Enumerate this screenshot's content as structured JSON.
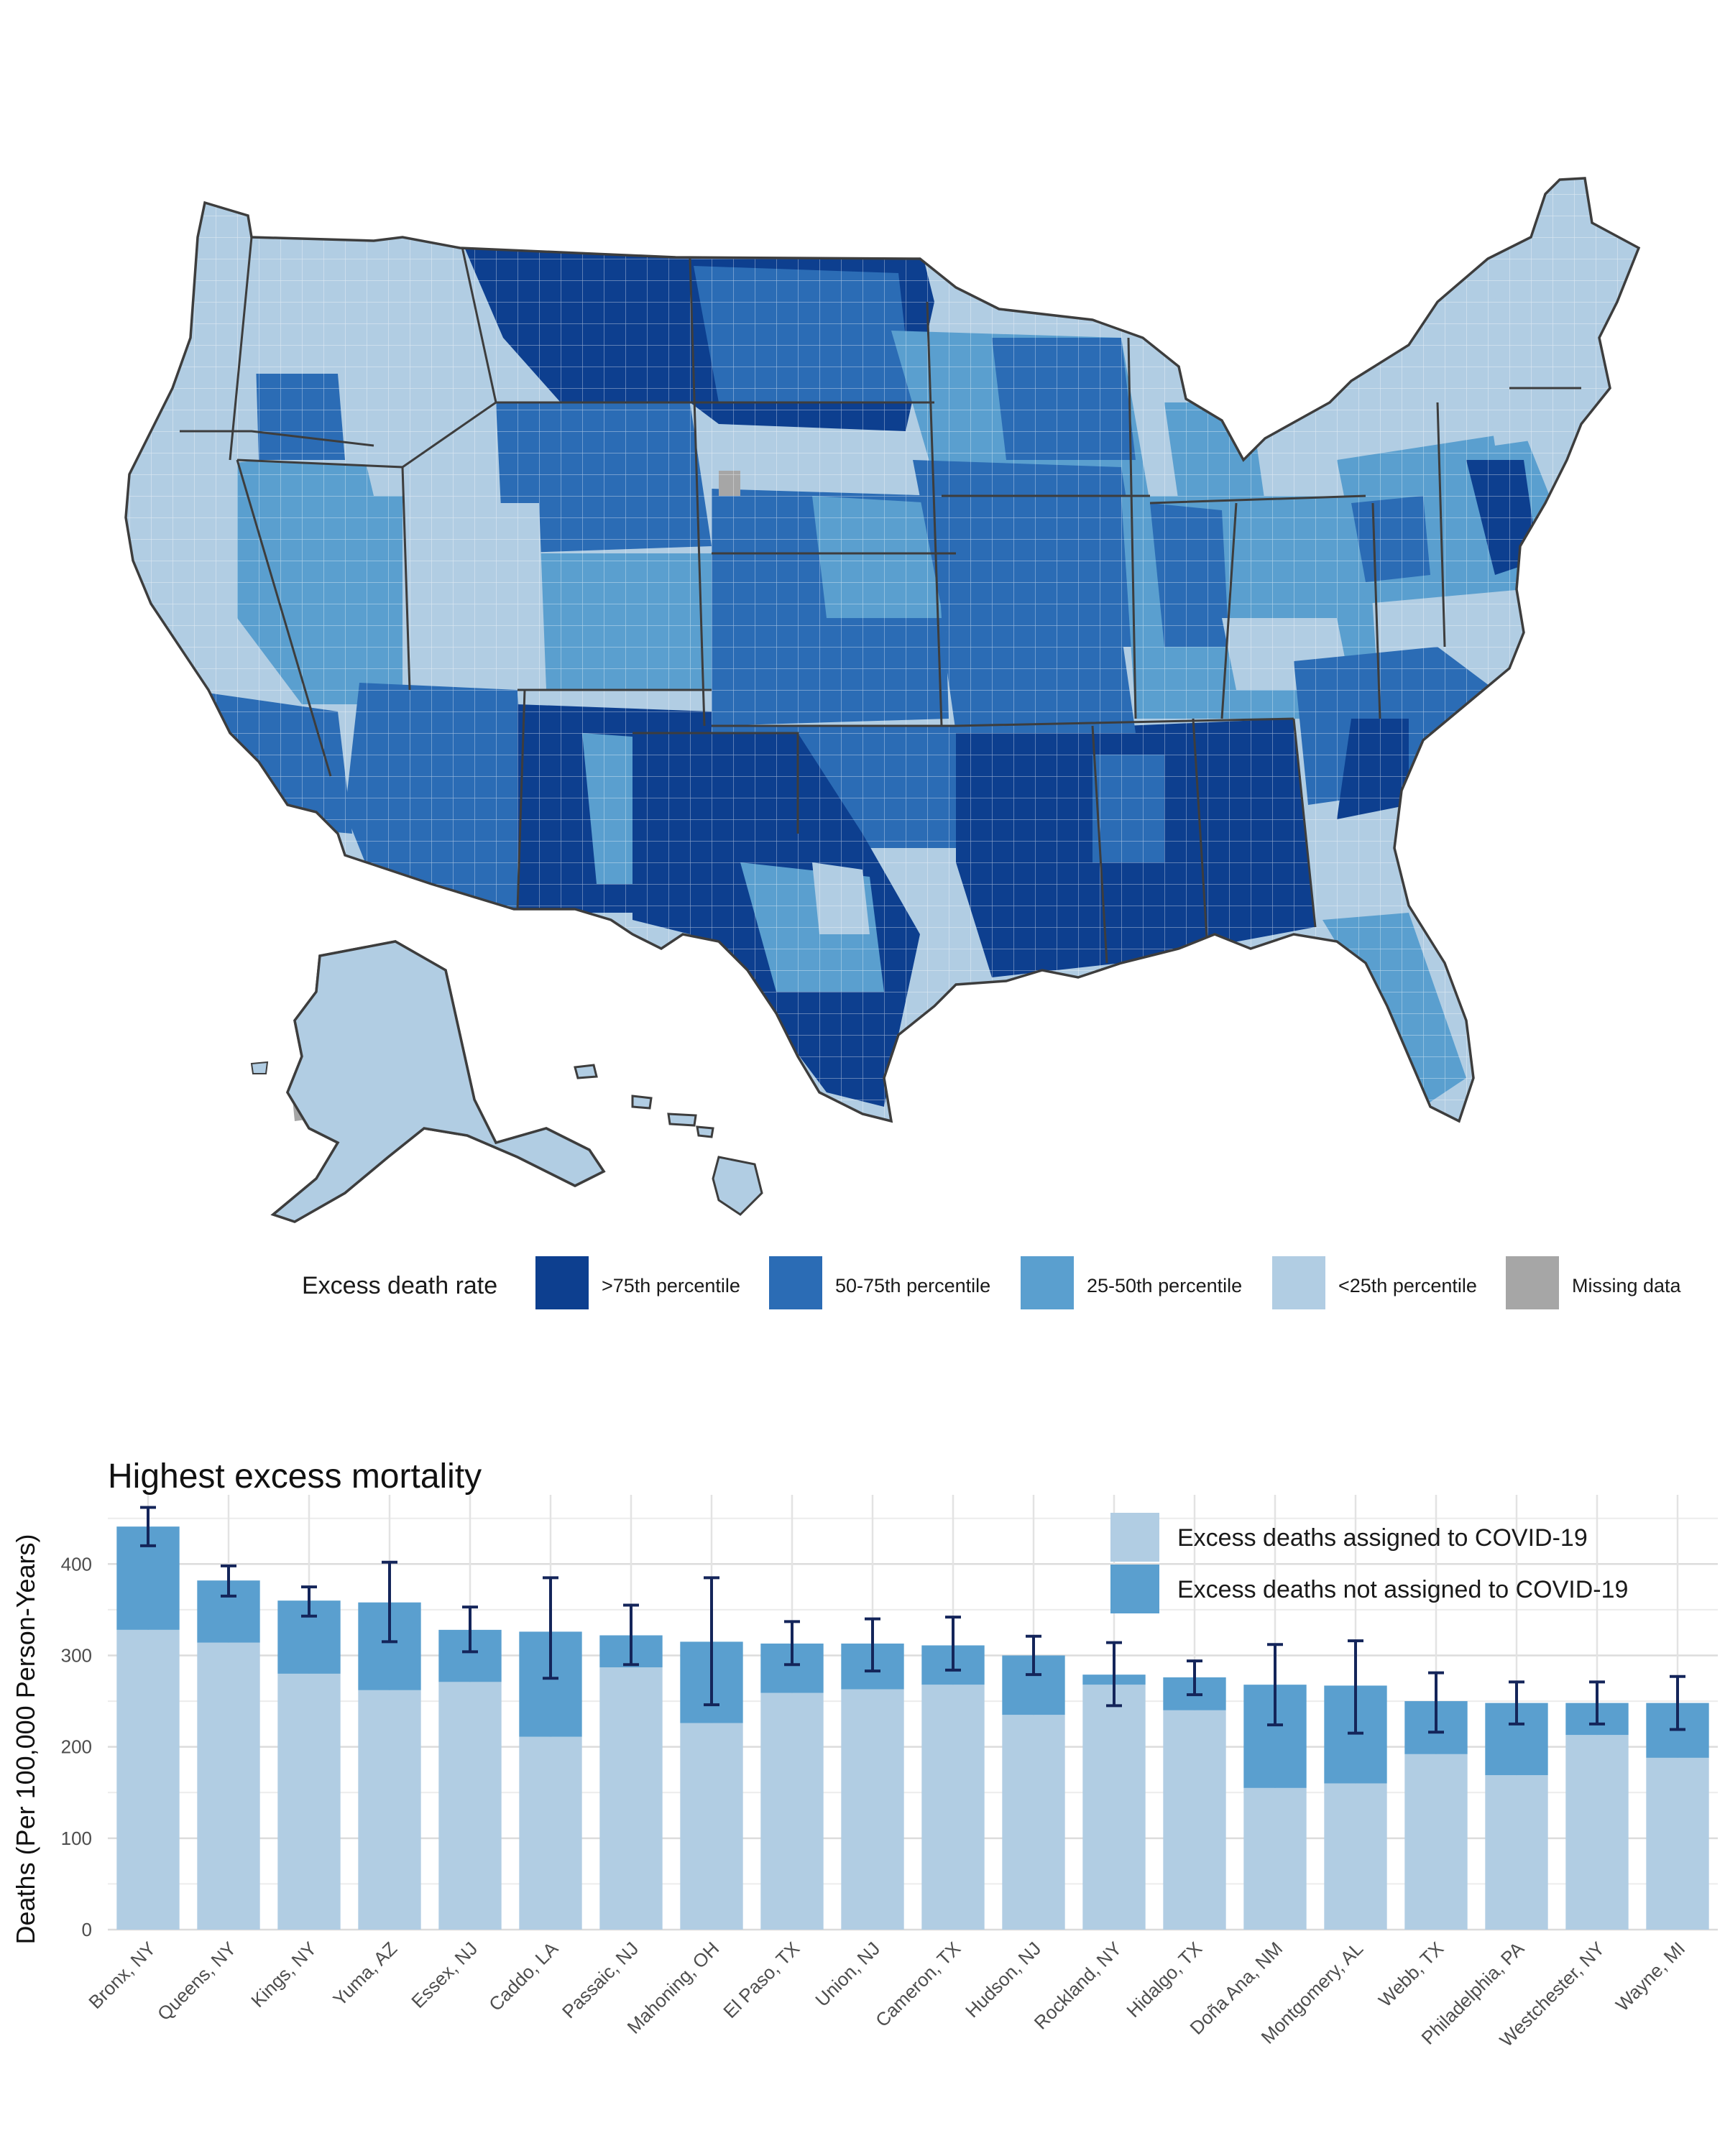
{
  "map": {
    "legend_title": "Excess death rate",
    "legend_items": [
      {
        "label": ">75th percentile",
        "color": "#0d3f8f"
      },
      {
        "label": "50-75th percentile",
        "color": "#2b6cb5"
      },
      {
        "label": "25-50th percentile",
        "color": "#5a9fcf"
      },
      {
        "label": "<25th percentile",
        "color": "#b1cde3"
      },
      {
        "label": "Missing data",
        "color": "#a6a6a6"
      }
    ]
  },
  "chart_data": {
    "type": "bar",
    "stacked": true,
    "title": "Highest excess mortality",
    "xlabel": "",
    "ylabel": "Deaths (Per 100,000 Person-Years)",
    "ylim": [
      0,
      460
    ],
    "yticks": [
      0,
      100,
      200,
      300,
      400
    ],
    "categories": [
      "Bronx, NY",
      "Queens, NY",
      "Kings, NY",
      "Yuma, AZ",
      "Essex, NJ",
      "Caddo, LA",
      "Passaic, NJ",
      "Mahoning, OH",
      "El Paso, TX",
      "Union, NJ",
      "Cameron, TX",
      "Hudson, NJ",
      "Rockland, NY",
      "Hidalgo, TX",
      "Doña Ana, NM",
      "Montgomery, AL",
      "Webb, TX",
      "Philadelphia, PA",
      "Westchester, NY",
      "Wayne, MI"
    ],
    "series": [
      {
        "name": "Excess deaths assigned to COVID-19",
        "color": "#b1cde3",
        "values": [
          328,
          314,
          280,
          262,
          271,
          211,
          287,
          226,
          259,
          263,
          268,
          235,
          268,
          240,
          155,
          160,
          192,
          169,
          213,
          188
        ]
      },
      {
        "name": "Excess deaths not assigned to COVID-19",
        "color": "#5a9fcf",
        "values": [
          113,
          68,
          80,
          96,
          57,
          115,
          35,
          89,
          54,
          50,
          43,
          65,
          11,
          36,
          113,
          107,
          58,
          79,
          35,
          60
        ]
      }
    ],
    "error_bars": {
      "color": "#14255a",
      "lower": [
        420,
        365,
        343,
        315,
        304,
        275,
        290,
        246,
        290,
        283,
        284,
        279,
        245,
        257,
        224,
        215,
        216,
        225,
        225,
        219
      ],
      "upper": [
        462,
        398,
        375,
        402,
        353,
        385,
        355,
        385,
        337,
        340,
        342,
        321,
        314,
        294,
        312,
        316,
        281,
        271,
        271,
        277
      ]
    },
    "legend_position": "top-right"
  }
}
